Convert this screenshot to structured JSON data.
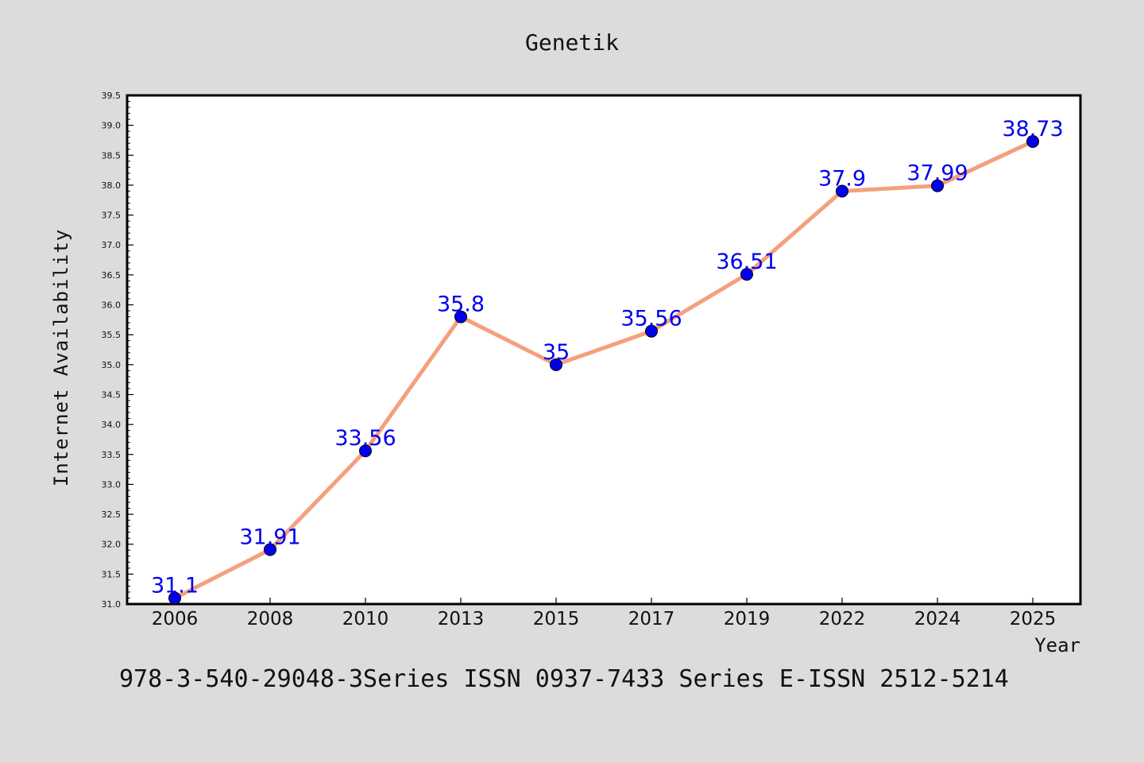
{
  "chart_data": {
    "type": "line",
    "title": "Genetik",
    "xlabel": "Year",
    "ylabel": "Internet Availability",
    "categories": [
      "2006",
      "2008",
      "2010",
      "2013",
      "2015",
      "2017",
      "2019",
      "2022",
      "2024",
      "2025"
    ],
    "series": [
      {
        "values": [
          31.1,
          31.91,
          33.56,
          35.8,
          35.0,
          35.56,
          36.51,
          37.9,
          37.99,
          38.73
        ],
        "labels": [
          "31.1",
          "31.91",
          "33.56",
          "35.8",
          "35",
          "35.56",
          "36.51",
          "37.9",
          "37.99",
          "38.73"
        ]
      }
    ],
    "ylim": [
      31.0,
      39.5
    ],
    "yticks": [
      "31.0",
      "31.5",
      "32.0",
      "32.5",
      "33.0",
      "33.5",
      "34.0",
      "34.5",
      "35.0",
      "35.5",
      "36.0",
      "36.5",
      "37.0",
      "37.5",
      "38.0",
      "38.5",
      "39.0",
      "39.5"
    ],
    "grid": false,
    "legend": "none",
    "line_color": "#f4a07e",
    "marker_color": "#0000ee",
    "label_color": "#0000ee",
    "background_color": "#dcdcdc",
    "plot_background": "#ffffff"
  },
  "footer": {
    "text": "978-3-540-29048-3Series ISSN 0937-7433 Series E-ISSN 2512-5214"
  }
}
